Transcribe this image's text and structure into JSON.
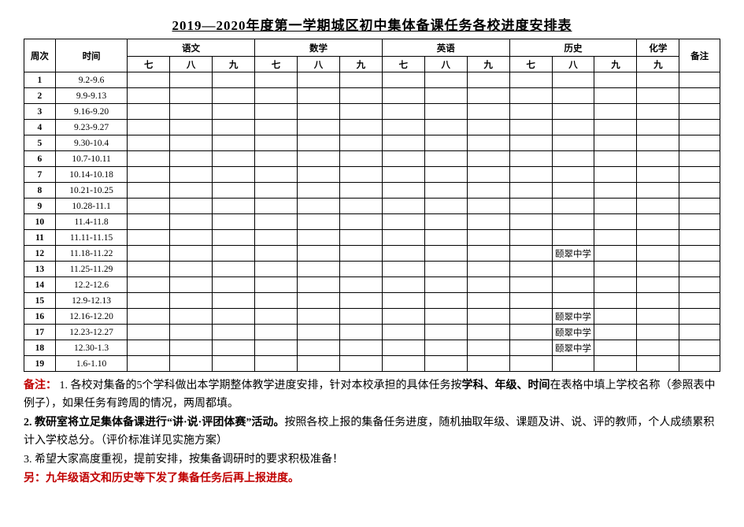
{
  "title": "2019—2020年度第一学期城区初中集体备课任务各校进度安排表",
  "headers": {
    "week": "周次",
    "time": "时间",
    "subjects": [
      "语文",
      "数学",
      "英语",
      "历史"
    ],
    "grades": [
      "七",
      "八",
      "九"
    ],
    "chemistry": "化学",
    "chemistry_grade": "九",
    "note": "备注"
  },
  "rows": [
    {
      "week": "1",
      "time": "9.2-9.6",
      "cells": [
        "",
        "",
        "",
        "",
        "",
        "",
        "",
        "",
        "",
        "",
        "",
        "",
        "",
        ""
      ]
    },
    {
      "week": "2",
      "time": "9.9-9.13",
      "cells": [
        "",
        "",
        "",
        "",
        "",
        "",
        "",
        "",
        "",
        "",
        "",
        "",
        "",
        ""
      ]
    },
    {
      "week": "3",
      "time": "9.16-9.20",
      "cells": [
        "",
        "",
        "",
        "",
        "",
        "",
        "",
        "",
        "",
        "",
        "",
        "",
        "",
        ""
      ]
    },
    {
      "week": "4",
      "time": "9.23-9.27",
      "cells": [
        "",
        "",
        "",
        "",
        "",
        "",
        "",
        "",
        "",
        "",
        "",
        "",
        "",
        ""
      ]
    },
    {
      "week": "5",
      "time": "9.30-10.4",
      "cells": [
        "",
        "",
        "",
        "",
        "",
        "",
        "",
        "",
        "",
        "",
        "",
        "",
        "",
        ""
      ]
    },
    {
      "week": "6",
      "time": "10.7-10.11",
      "cells": [
        "",
        "",
        "",
        "",
        "",
        "",
        "",
        "",
        "",
        "",
        "",
        "",
        "",
        ""
      ]
    },
    {
      "week": "7",
      "time": "10.14-10.18",
      "cells": [
        "",
        "",
        "",
        "",
        "",
        "",
        "",
        "",
        "",
        "",
        "",
        "",
        "",
        ""
      ]
    },
    {
      "week": "8",
      "time": "10.21-10.25",
      "cells": [
        "",
        "",
        "",
        "",
        "",
        "",
        "",
        "",
        "",
        "",
        "",
        "",
        "",
        ""
      ]
    },
    {
      "week": "9",
      "time": "10.28-11.1",
      "cells": [
        "",
        "",
        "",
        "",
        "",
        "",
        "",
        "",
        "",
        "",
        "",
        "",
        "",
        ""
      ]
    },
    {
      "week": "10",
      "time": "11.4-11.8",
      "cells": [
        "",
        "",
        "",
        "",
        "",
        "",
        "",
        "",
        "",
        "",
        "",
        "",
        "",
        ""
      ]
    },
    {
      "week": "11",
      "time": "11.11-11.15",
      "cells": [
        "",
        "",
        "",
        "",
        "",
        "",
        "",
        "",
        "",
        "",
        "",
        "",
        "",
        ""
      ]
    },
    {
      "week": "12",
      "time": "11.18-11.22",
      "cells": [
        "",
        "",
        "",
        "",
        "",
        "",
        "",
        "",
        "",
        "",
        "颐翠中学",
        "",
        "",
        ""
      ]
    },
    {
      "week": "13",
      "time": "11.25-11.29",
      "cells": [
        "",
        "",
        "",
        "",
        "",
        "",
        "",
        "",
        "",
        "",
        "",
        "",
        "",
        ""
      ]
    },
    {
      "week": "14",
      "time": "12.2-12.6",
      "cells": [
        "",
        "",
        "",
        "",
        "",
        "",
        "",
        "",
        "",
        "",
        "",
        "",
        "",
        ""
      ]
    },
    {
      "week": "15",
      "time": "12.9-12.13",
      "cells": [
        "",
        "",
        "",
        "",
        "",
        "",
        "",
        "",
        "",
        "",
        "",
        "",
        "",
        ""
      ]
    },
    {
      "week": "16",
      "time": "12.16-12.20",
      "cells": [
        "",
        "",
        "",
        "",
        "",
        "",
        "",
        "",
        "",
        "",
        "颐翠中学",
        "",
        "",
        ""
      ]
    },
    {
      "week": "17",
      "time": "12.23-12.27",
      "cells": [
        "",
        "",
        "",
        "",
        "",
        "",
        "",
        "",
        "",
        "",
        "颐翠中学",
        "",
        "",
        ""
      ]
    },
    {
      "week": "18",
      "time": "12.30-1.3",
      "cells": [
        "",
        "",
        "",
        "",
        "",
        "",
        "",
        "",
        "",
        "",
        "颐翠中学",
        "",
        "",
        ""
      ]
    },
    {
      "week": "19",
      "time": "1.6-1.10",
      "cells": [
        "",
        "",
        "",
        "",
        "",
        "",
        "",
        "",
        "",
        "",
        "",
        "",
        "",
        ""
      ]
    }
  ],
  "notes": {
    "label": "备注：",
    "n1_a": "1. 各校对集备的5个学科做出本学期整体教学进度安排，针对本校承担的具体任务按",
    "n1_b": "学科、年级、时间",
    "n1_c": "在表格中填上学校名称（参照表中例子），如果任务有跨周的情况，两周都填。",
    "n2_a": "2. 教研室将立足集体备课进行“讲·说·评团体赛”活动。",
    "n2_b": "按照各校上报的集备任务进度，随机抽取年级、课题及讲、说、评的教师，个人成绩累积计入学校总分。（评价标准详见实施方案）",
    "n3": "3. 希望大家高度重视，提前安排，按集备调研时的要求积极准备！",
    "n4_a": "另：",
    "n4_b": "九年级语文和历史等下发了集备任务后再上报进度。"
  },
  "style": {
    "red": "#c00000",
    "border": "#000000",
    "bg": "#ffffff"
  }
}
